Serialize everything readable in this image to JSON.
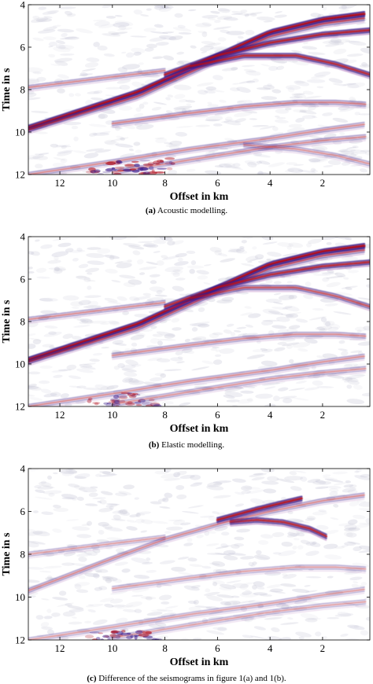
{
  "chart_data": [
    {
      "type": "seismogram",
      "panel": "a",
      "xlabel": "Offset in km",
      "ylabel": "Time in s",
      "x_ticks": [
        12,
        10,
        8,
        6,
        4,
        2
      ],
      "y_ticks": [
        4,
        6,
        8,
        10,
        12
      ],
      "xlim": [
        13.2,
        0.2
      ],
      "ylim": [
        4,
        12
      ],
      "x_reversed": true,
      "y_reversed": true,
      "caption_label": "(a)",
      "caption_text": "Acoustic modelling.",
      "events": [
        {
          "x": [
            13.2,
            9,
            6,
            4,
            2,
            0.2
          ],
          "t": [
            9.8,
            8.1,
            6.4,
            5.3,
            4.7,
            4.4
          ],
          "strength": 1.0
        },
        {
          "x": [
            13.2,
            9,
            6,
            4,
            2,
            0.2
          ],
          "t": [
            9.9,
            8.3,
            6.6,
            5.5,
            4.9,
            4.6
          ],
          "strength": 0.5
        },
        {
          "x": [
            8,
            6,
            4,
            2,
            0.2
          ],
          "t": [
            7.3,
            6.4,
            5.8,
            5.4,
            5.2
          ],
          "strength": 0.85
        },
        {
          "x": [
            7,
            5,
            3,
            1.5,
            0.2
          ],
          "t": [
            6.9,
            6.4,
            6.4,
            6.8,
            7.3
          ],
          "strength": 0.8
        },
        {
          "x": [
            13.2,
            10,
            8
          ],
          "t": [
            7.9,
            7.4,
            7.1
          ],
          "strength": 0.3
        },
        {
          "x": [
            10,
            7,
            5,
            3,
            1.5,
            0.2
          ],
          "t": [
            9.6,
            9.1,
            8.8,
            8.6,
            8.6,
            8.7
          ],
          "strength": 0.35
        },
        {
          "x": [
            13.2,
            10,
            7,
            4,
            2,
            0.2
          ],
          "t": [
            12.0,
            11.4,
            10.8,
            10.3,
            9.9,
            9.6
          ],
          "strength": 0.3
        },
        {
          "x": [
            10,
            7,
            4,
            2,
            0.2
          ],
          "t": [
            11.9,
            11.3,
            10.7,
            10.4,
            10.2
          ],
          "strength": 0.28
        },
        {
          "x": [
            5,
            3,
            1.5,
            0.2
          ],
          "t": [
            10.6,
            10.8,
            11.1,
            11.5
          ],
          "strength": 0.25
        }
      ],
      "blobs": [
        {
          "x": 9.5,
          "t": 11.6,
          "strength": 0.8
        },
        {
          "x": 8.8,
          "t": 11.8,
          "strength": 0.7
        },
        {
          "x": 10.3,
          "t": 11.9,
          "strength": 0.6
        },
        {
          "x": 8.2,
          "t": 11.5,
          "strength": 0.5
        }
      ]
    },
    {
      "type": "seismogram",
      "panel": "b",
      "xlabel": "Offset in km",
      "ylabel": "Time in s",
      "x_ticks": [
        12,
        10,
        8,
        6,
        4,
        2
      ],
      "y_ticks": [
        4,
        6,
        8,
        10,
        12
      ],
      "xlim": [
        13.2,
        0.2
      ],
      "ylim": [
        4,
        12
      ],
      "x_reversed": true,
      "y_reversed": true,
      "caption_label": "(b)",
      "caption_text": "Elastic modelling.",
      "events": [
        {
          "x": [
            13.2,
            9,
            6,
            4,
            2,
            0.2
          ],
          "t": [
            9.8,
            8.1,
            6.4,
            5.3,
            4.7,
            4.4
          ],
          "strength": 1.0
        },
        {
          "x": [
            13.2,
            9,
            6,
            4,
            2,
            0.2
          ],
          "t": [
            9.9,
            8.3,
            6.6,
            5.5,
            4.9,
            4.6
          ],
          "strength": 0.45
        },
        {
          "x": [
            8,
            6,
            4,
            2,
            0.2
          ],
          "t": [
            7.3,
            6.4,
            5.8,
            5.4,
            5.2
          ],
          "strength": 0.8
        },
        {
          "x": [
            7,
            5,
            3,
            1.5,
            0.2
          ],
          "t": [
            6.9,
            6.4,
            6.4,
            6.8,
            7.3
          ],
          "strength": 0.55
        },
        {
          "x": [
            13.2,
            10,
            8
          ],
          "t": [
            7.9,
            7.4,
            7.1
          ],
          "strength": 0.3
        },
        {
          "x": [
            10,
            7,
            5,
            3,
            1.5,
            0.2
          ],
          "t": [
            9.6,
            9.1,
            8.8,
            8.6,
            8.6,
            8.7
          ],
          "strength": 0.3
        },
        {
          "x": [
            13.2,
            10,
            7,
            4,
            2,
            0.2
          ],
          "t": [
            12.0,
            11.4,
            10.8,
            10.3,
            9.9,
            9.6
          ],
          "strength": 0.28
        },
        {
          "x": [
            10,
            7,
            4,
            2,
            0.2
          ],
          "t": [
            11.9,
            11.3,
            10.7,
            10.4,
            10.2
          ],
          "strength": 0.25
        }
      ],
      "blobs": [
        {
          "x": 9.5,
          "t": 11.6,
          "strength": 0.5
        },
        {
          "x": 8.8,
          "t": 11.8,
          "strength": 0.45
        },
        {
          "x": 10.3,
          "t": 11.9,
          "strength": 0.4
        }
      ]
    },
    {
      "type": "seismogram",
      "panel": "c",
      "xlabel": "Offset in km",
      "ylabel": "Time in s",
      "x_ticks": [
        12,
        10,
        8,
        6,
        4,
        2
      ],
      "y_ticks": [
        4,
        6,
        8,
        10,
        12
      ],
      "xlim": [
        13.2,
        0.2
      ],
      "ylim": [
        4,
        12
      ],
      "x_reversed": true,
      "y_reversed": true,
      "caption_label": "(c)",
      "caption_text": "Difference of the seismograms in figure 1(a) and 1(b).",
      "events": [
        {
          "x": [
            6,
            4.5,
            3.5,
            2.8
          ],
          "t": [
            6.4,
            5.9,
            5.6,
            5.4
          ],
          "strength": 0.9
        },
        {
          "x": [
            5.5,
            4.5,
            3.5,
            2.5,
            1.8
          ],
          "t": [
            6.5,
            6.4,
            6.5,
            6.8,
            7.2
          ],
          "strength": 0.8
        },
        {
          "x": [
            13.2,
            10,
            8,
            6,
            4,
            2,
            0.2
          ],
          "t": [
            9.7,
            8.2,
            7.3,
            6.6,
            6.0,
            5.5,
            5.2
          ],
          "strength": 0.3
        },
        {
          "x": [
            13.2,
            10,
            8
          ],
          "t": [
            8.0,
            7.5,
            7.2
          ],
          "strength": 0.2
        },
        {
          "x": [
            10,
            7,
            5,
            3,
            1.5,
            0.2
          ],
          "t": [
            9.6,
            9.1,
            8.8,
            8.6,
            8.6,
            8.7
          ],
          "strength": 0.2
        },
        {
          "x": [
            13.2,
            10,
            7,
            4,
            2,
            0.2
          ],
          "t": [
            12.0,
            11.4,
            10.8,
            10.3,
            9.9,
            9.6
          ],
          "strength": 0.2
        },
        {
          "x": [
            10,
            7,
            4,
            2,
            0.2
          ],
          "t": [
            11.9,
            11.3,
            10.7,
            10.4,
            10.2
          ],
          "strength": 0.18
        }
      ],
      "blobs": [
        {
          "x": 9.5,
          "t": 11.7,
          "strength": 0.6
        },
        {
          "x": 8.8,
          "t": 11.9,
          "strength": 0.5
        },
        {
          "x": 10.3,
          "t": 11.9,
          "strength": 0.45
        }
      ]
    }
  ],
  "colors": {
    "positive": "#b0101f",
    "negative": "#3a1a8a",
    "mid": "#8a2f9a",
    "noise": "#c8c8d8",
    "frame": "#000000"
  }
}
